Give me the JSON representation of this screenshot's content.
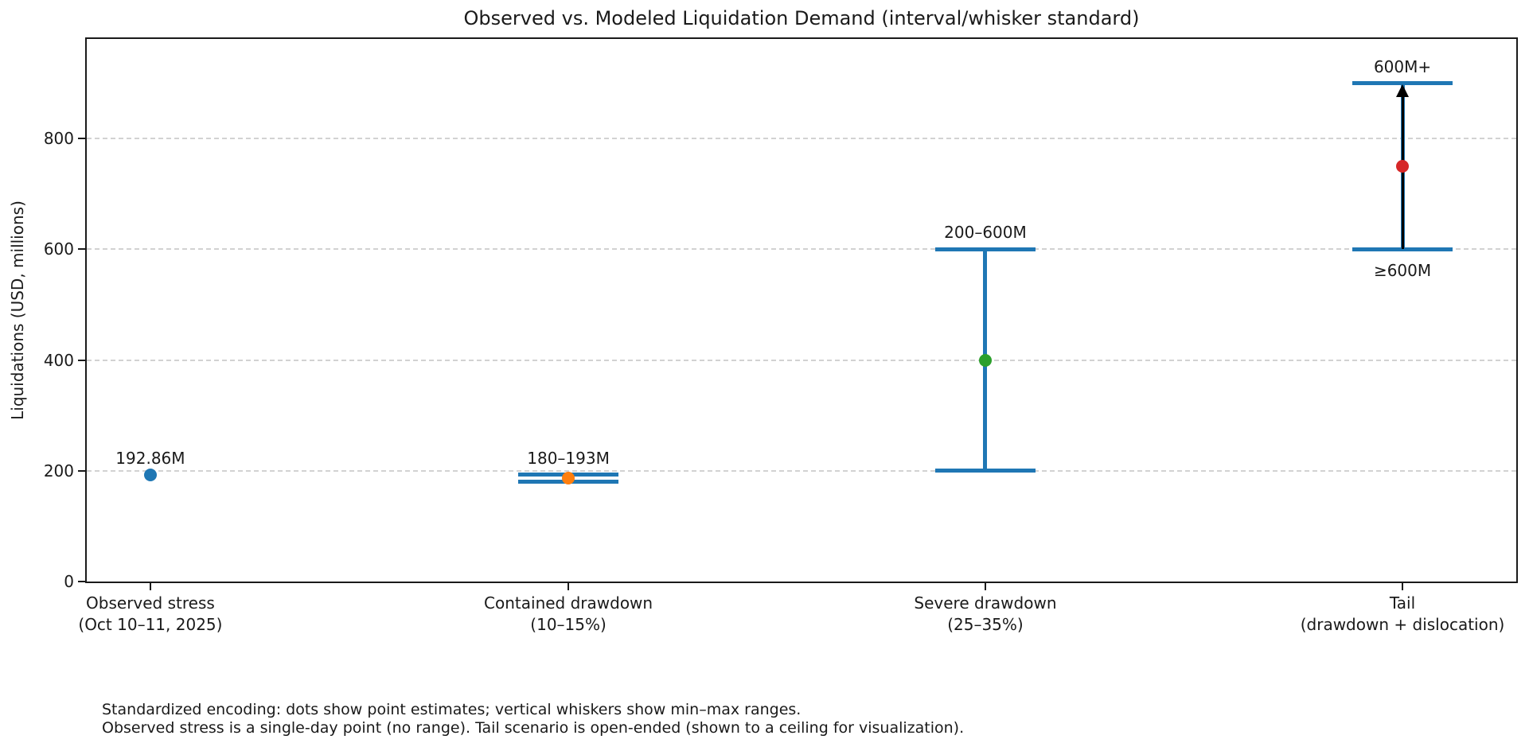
{
  "chart_data": {
    "type": "scatter",
    "title": "Observed vs. Modeled Liquidation Demand (interval/whisker standard)",
    "ylabel": "Liquidations (USD, millions)",
    "xlabel": "",
    "ylim": [
      0,
      980
    ],
    "yticks": [
      0,
      200,
      400,
      600,
      800
    ],
    "grid": "horizontal dashed",
    "legend": "none",
    "whisker_color": "#1f77b4",
    "arrow_color": "#000000",
    "axis_color": "#1a1a1a",
    "points": [
      {
        "category": "Observed stress",
        "category_detail": "(Oct 10–11, 2025)",
        "estimate": 192.86,
        "range_min": null,
        "range_max": null,
        "label": "192.86M",
        "label_below": null,
        "dot_color": "#1f77b4",
        "open_ended": false
      },
      {
        "category": "Contained drawdown",
        "category_detail": "(10–15%)",
        "estimate": 186.5,
        "range_min": 180,
        "range_max": 193,
        "label": "180–193M",
        "label_below": null,
        "dot_color": "#ff7f0e",
        "open_ended": false
      },
      {
        "category": "Severe drawdown",
        "category_detail": "(25–35%)",
        "estimate": 400,
        "range_min": 200,
        "range_max": 600,
        "label": "200–600M",
        "label_below": null,
        "dot_color": "#2ca02c",
        "open_ended": false
      },
      {
        "category": "Tail",
        "category_detail": "(drawdown + dislocation)",
        "estimate": 750,
        "range_min": 600,
        "range_max": 900,
        "label": "600M+",
        "label_below": "≥600M",
        "dot_color": "#d62728",
        "open_ended": true
      }
    ],
    "footnote": [
      "Standardized encoding: dots show point estimates; vertical whiskers show min–max ranges.",
      "Observed stress is a single-day point (no range). Tail scenario is open-ended (shown to a ceiling for visualization)."
    ]
  }
}
